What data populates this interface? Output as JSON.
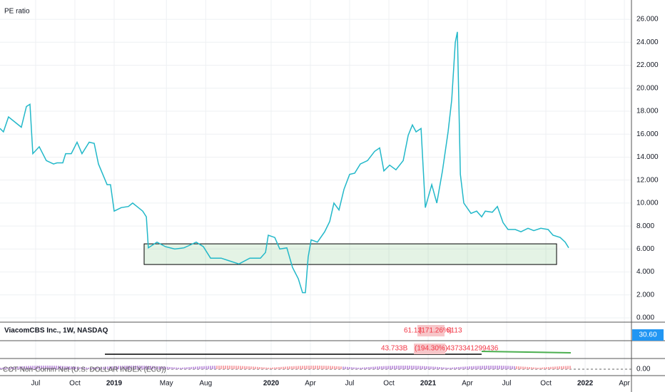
{
  "chart_data": {
    "type": "line",
    "title": "PE ratio",
    "color": "#22b8c9",
    "x": [
      2018.273,
      2018.295,
      2018.327,
      2018.409,
      2018.441,
      2018.464,
      2018.482,
      2018.523,
      2018.568,
      2018.614,
      2018.636,
      2018.673,
      2018.691,
      2018.727,
      2018.764,
      2018.795,
      2018.841,
      2018.873,
      2018.9,
      2018.955,
      2018.977,
      2019.0,
      2019.045,
      2019.091,
      2019.118,
      2019.145,
      2019.182,
      2019.205,
      2019.218,
      2019.273,
      2019.327,
      2019.386,
      2019.445,
      2019.477,
      2019.523,
      2019.568,
      2019.614,
      2019.682,
      2019.727,
      2019.795,
      2019.864,
      2019.932,
      2019.964,
      2019.982,
      2020.023,
      2020.055,
      2020.1,
      2020.136,
      2020.173,
      2020.2,
      2020.218,
      2020.236,
      2020.255,
      2020.295,
      2020.341,
      2020.373,
      2020.4,
      2020.432,
      2020.464,
      2020.5,
      2020.532,
      2020.568,
      2020.614,
      2020.659,
      2020.691,
      2020.718,
      2020.755,
      2020.795,
      2020.841,
      2020.873,
      2020.9,
      2020.923,
      2020.955,
      2020.982,
      2021.023,
      2021.055,
      2021.091,
      2021.127,
      2021.15,
      2021.173,
      2021.186,
      2021.205,
      2021.227,
      2021.273,
      2021.309,
      2021.341,
      2021.364,
      2021.409,
      2021.441,
      2021.477,
      2021.509,
      2021.555,
      2021.591,
      2021.636,
      2021.673,
      2021.718,
      2021.764,
      2021.795,
      2021.841,
      2021.873,
      2021.895
    ],
    "values": [
      16.5,
      16.2,
      17.5,
      16.6,
      18.4,
      18.6,
      14.3,
      14.9,
      13.7,
      13.4,
      13.5,
      13.5,
      14.3,
      14.3,
      15.3,
      14.3,
      15.3,
      15.2,
      13.4,
      11.6,
      11.6,
      9.3,
      9.6,
      9.7,
      10.0,
      9.7,
      9.3,
      8.8,
      6.1,
      6.6,
      6.2,
      6.0,
      6.1,
      6.3,
      6.6,
      6.2,
      5.2,
      5.2,
      5.0,
      4.7,
      5.2,
      5.2,
      5.7,
      7.2,
      7.0,
      6.0,
      6.1,
      4.4,
      3.4,
      2.2,
      2.2,
      5.3,
      6.8,
      6.6,
      7.5,
      8.4,
      10.0,
      9.4,
      11.2,
      12.5,
      12.6,
      13.4,
      13.7,
      14.5,
      14.8,
      12.8,
      13.3,
      12.9,
      13.7,
      15.9,
      16.8,
      16.2,
      16.5,
      9.6,
      11.6,
      10.0,
      12.8,
      16.2,
      19.0,
      24.0,
      24.9,
      12.5,
      10.0,
      9.1,
      9.3,
      8.8,
      9.3,
      9.2,
      9.7,
      8.3,
      7.7,
      7.7,
      7.5,
      7.8,
      7.6,
      7.8,
      7.7,
      7.2,
      7.0,
      6.6,
      6.1
    ],
    "xlim": [
      2018.273,
      2022.295
    ],
    "xticks": [
      {
        "value": 2018.5,
        "label": "Jul"
      },
      {
        "value": 2018.75,
        "label": "Oct"
      },
      2019,
      {
        "value": 2019.333,
        "label": "May"
      },
      {
        "value": 2019.583,
        "label": "Aug"
      },
      2020,
      {
        "value": 2020.25,
        "label": "Apr"
      },
      {
        "value": 2020.5,
        "label": "Jul"
      },
      {
        "value": 2020.75,
        "label": "Oct"
      },
      2021,
      {
        "value": 2021.25,
        "label": "Apr"
      },
      {
        "value": 2021.5,
        "label": "Jul"
      },
      {
        "value": 2021.75,
        "label": "Oct"
      },
      2022,
      {
        "value": 2022.25,
        "label": "Apr"
      }
    ],
    "ylim": [
      -0.37,
      27.68
    ],
    "yticks": [
      {
        "value": 0,
        "label": "0.000"
      },
      {
        "value": 2,
        "label": "2.000"
      },
      {
        "value": 4,
        "label": "4.000"
      },
      {
        "value": 6,
        "label": "6.000"
      },
      {
        "value": 8,
        "label": "8.000"
      },
      {
        "value": 10,
        "label": "10.000"
      },
      {
        "value": 12,
        "label": "12.000"
      },
      {
        "value": 14,
        "label": "14.000"
      },
      {
        "value": 16,
        "label": "16.000"
      },
      {
        "value": 18,
        "label": "18.000"
      },
      {
        "value": 20,
        "label": "20.000"
      },
      {
        "value": 22,
        "label": "22.000"
      },
      {
        "value": 24,
        "label": "24.000"
      },
      {
        "value": 26,
        "label": "26.000"
      }
    ],
    "grid": true,
    "zone": {
      "x": [
        2019.191,
        2021.818
      ],
      "y": [
        4.65,
        6.45
      ]
    },
    "indicators": [
      {
        "label": "ViacomCBS Inc., 1W, NASDAQ",
        "value": "61.13",
        "change": "(171.26%)",
        "raw": "6113",
        "axis_label": "30.60"
      },
      {
        "value": "43.733B",
        "change": "(194.30%)",
        "raw": "4373341299436"
      },
      {
        "label": "COT Non-Comm Net (U.S. DOLLAR INDEX (ECU))",
        "axis_label": "0.00"
      }
    ]
  }
}
